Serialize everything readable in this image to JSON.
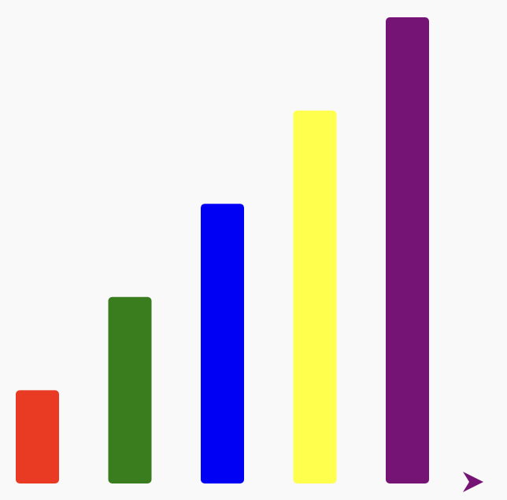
{
  "chart_data": {
    "type": "bar",
    "title": "",
    "xlabel": "",
    "ylabel": "",
    "categories": [
      "",
      "",
      "",
      "",
      ""
    ],
    "values": [
      1,
      2,
      3,
      4,
      5
    ],
    "ylim": [
      0,
      5
    ],
    "grid": false,
    "legend": "none",
    "colors": [
      "#e93a24",
      "#3a7d1f",
      "#0000f4",
      "#ffff4d",
      "#751474"
    ]
  },
  "decorations": {
    "arrow_icon": "play-arrow-icon",
    "arrow_color": "#751474"
  }
}
